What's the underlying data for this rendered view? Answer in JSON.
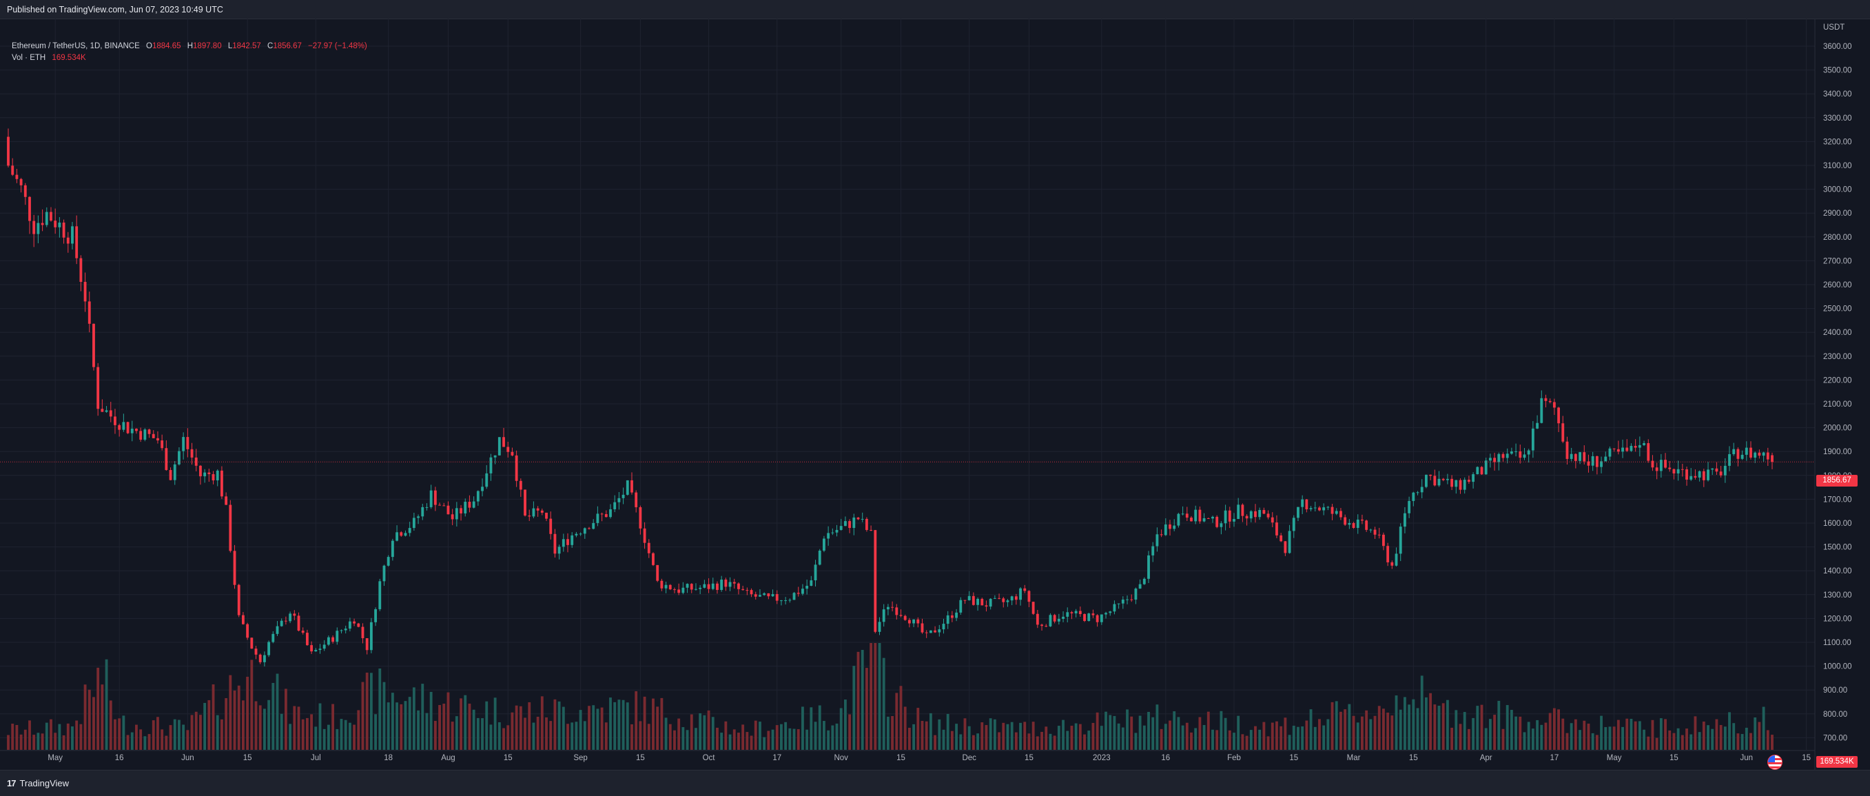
{
  "header": {
    "published": "Published on TradingView.com, Jun 07, 2023 10:49 UTC"
  },
  "legend": {
    "title": "Ethereum / TetherUS, 1D, BINANCE",
    "o_label": "O",
    "o_value": "1884.65",
    "h_label": "H",
    "h_value": "1897.80",
    "l_label": "L",
    "l_value": "1842.57",
    "c_label": "C",
    "c_value": "1856.67",
    "change": "−27.97 (−1.48%)",
    "vol_label": "Vol · ETH",
    "vol_value": "169.534K"
  },
  "footer": {
    "brand": "TradingView"
  },
  "colors": {
    "background": "#131722",
    "grid": "#1f2330",
    "up": "#26a69a",
    "down": "#f23645",
    "up_volume": "#1f5f5b",
    "down_volume": "#7a2a30",
    "axis_text": "#b2b5be",
    "price_line": "#f23645"
  },
  "chart_data": {
    "type": "candlestick",
    "symbol": "Ethereum / TetherUS",
    "interval": "1D",
    "exchange": "BINANCE",
    "y_unit": "USDT",
    "ylim": [
      700,
      3700
    ],
    "yticks": [
      700,
      800,
      900,
      1000,
      1100,
      1200,
      1300,
      1400,
      1500,
      1600,
      1700,
      1800,
      1900,
      2000,
      2100,
      2200,
      2300,
      2400,
      2500,
      2600,
      2700,
      2800,
      2900,
      3000,
      3100,
      3200,
      3300,
      3400,
      3500,
      3600
    ],
    "x_labels": [
      "May",
      "16",
      "Jun",
      "15",
      "Jul",
      "18",
      "Aug",
      "15",
      "Sep",
      "15",
      "Oct",
      "17",
      "Nov",
      "15",
      "Dec",
      "15",
      "2023",
      "16",
      "Feb",
      "15",
      "Mar",
      "15",
      "Apr",
      "17",
      "May",
      "15",
      "Jun",
      "15"
    ],
    "last_price": 1856.67,
    "last_volume": "169.534K",
    "price_path": [
      [
        "2022-04-20",
        3100
      ],
      [
        "2022-04-23",
        3000
      ],
      [
        "2022-04-26",
        2850
      ],
      [
        "2022-04-29",
        2900
      ],
      [
        "2022-05-02",
        2850
      ],
      [
        "2022-05-05",
        2800
      ],
      [
        "2022-05-08",
        2550
      ],
      [
        "2022-05-11",
        2100
      ],
      [
        "2022-05-14",
        2050
      ],
      [
        "2022-05-18",
        2000
      ],
      [
        "2022-05-21",
        1980
      ],
      [
        "2022-05-25",
        1950
      ],
      [
        "2022-05-28",
        1800
      ],
      [
        "2022-05-31",
        1950
      ],
      [
        "2022-06-04",
        1800
      ],
      [
        "2022-06-08",
        1810
      ],
      [
        "2022-06-10",
        1650
      ],
      [
        "2022-06-13",
        1200
      ],
      [
        "2022-06-16",
        1080
      ],
      [
        "2022-06-18",
        1020
      ],
      [
        "2022-06-20",
        1100
      ],
      [
        "2022-06-25",
        1230
      ],
      [
        "2022-06-30",
        1050
      ],
      [
        "2022-07-05",
        1120
      ],
      [
        "2022-07-10",
        1200
      ],
      [
        "2022-07-13",
        1080
      ],
      [
        "2022-07-16",
        1350
      ],
      [
        "2022-07-19",
        1550
      ],
      [
        "2022-07-24",
        1600
      ],
      [
        "2022-07-28",
        1720
      ],
      [
        "2022-08-02",
        1620
      ],
      [
        "2022-08-07",
        1700
      ],
      [
        "2022-08-13",
        1950
      ],
      [
        "2022-08-16",
        1900
      ],
      [
        "2022-08-19",
        1620
      ],
      [
        "2022-08-23",
        1650
      ],
      [
        "2022-08-26",
        1480
      ],
      [
        "2022-08-30",
        1550
      ],
      [
        "2022-09-03",
        1600
      ],
      [
        "2022-09-08",
        1650
      ],
      [
        "2022-09-12",
        1750
      ],
      [
        "2022-09-15",
        1600
      ],
      [
        "2022-09-19",
        1350
      ],
      [
        "2022-09-24",
        1320
      ],
      [
        "2022-09-30",
        1330
      ],
      [
        "2022-10-05",
        1350
      ],
      [
        "2022-10-10",
        1300
      ],
      [
        "2022-10-15",
        1280
      ],
      [
        "2022-10-20",
        1290
      ],
      [
        "2022-10-25",
        1350
      ],
      [
        "2022-10-28",
        1550
      ],
      [
        "2022-11-01",
        1580
      ],
      [
        "2022-11-05",
        1620
      ],
      [
        "2022-11-08",
        1550
      ],
      [
        "2022-11-09",
        1150
      ],
      [
        "2022-11-12",
        1260
      ],
      [
        "2022-11-17",
        1200
      ],
      [
        "2022-11-21",
        1120
      ],
      [
        "2022-11-26",
        1200
      ],
      [
        "2022-11-30",
        1280
      ],
      [
        "2022-12-05",
        1260
      ],
      [
        "2022-12-10",
        1270
      ],
      [
        "2022-12-14",
        1320
      ],
      [
        "2022-12-17",
        1170
      ],
      [
        "2022-12-23",
        1220
      ],
      [
        "2022-12-31",
        1200
      ],
      [
        "2023-01-05",
        1250
      ],
      [
        "2023-01-10",
        1330
      ],
      [
        "2023-01-14",
        1550
      ],
      [
        "2023-01-20",
        1650
      ],
      [
        "2023-01-27",
        1600
      ],
      [
        "2023-02-02",
        1650
      ],
      [
        "2023-02-08",
        1640
      ],
      [
        "2023-02-13",
        1500
      ],
      [
        "2023-02-17",
        1690
      ],
      [
        "2023-02-23",
        1650
      ],
      [
        "2023-03-01",
        1600
      ],
      [
        "2023-03-06",
        1560
      ],
      [
        "2023-03-10",
        1420
      ],
      [
        "2023-03-14",
        1700
      ],
      [
        "2023-03-18",
        1800
      ],
      [
        "2023-03-25",
        1750
      ],
      [
        "2023-03-31",
        1820
      ],
      [
        "2023-04-05",
        1880
      ],
      [
        "2023-04-10",
        1870
      ],
      [
        "2023-04-14",
        2100
      ],
      [
        "2023-04-17",
        2080
      ],
      [
        "2023-04-20",
        1900
      ],
      [
        "2023-04-25",
        1850
      ],
      [
        "2023-04-30",
        1880
      ],
      [
        "2023-05-05",
        1900
      ],
      [
        "2023-05-07",
        1950
      ],
      [
        "2023-05-10",
        1850
      ],
      [
        "2023-05-15",
        1820
      ],
      [
        "2023-05-20",
        1810
      ],
      [
        "2023-05-25",
        1800
      ],
      [
        "2023-05-30",
        1900
      ],
      [
        "2023-06-04",
        1890
      ],
      [
        "2023-06-06",
        1880
      ],
      [
        "2023-06-07",
        1856.67
      ]
    ],
    "volume_path": [
      [
        "2022-04-20",
        0.18
      ],
      [
        "2022-05-05",
        0.22
      ],
      [
        "2022-05-09",
        0.5
      ],
      [
        "2022-05-12",
        0.7
      ],
      [
        "2022-05-16",
        0.25
      ],
      [
        "2022-06-01",
        0.2
      ],
      [
        "2022-06-13",
        0.65
      ],
      [
        "2022-06-18",
        0.72
      ],
      [
        "2022-06-25",
        0.35
      ],
      [
        "2022-07-05",
        0.3
      ],
      [
        "2022-07-15",
        0.55
      ],
      [
        "2022-07-28",
        0.45
      ],
      [
        "2022-08-15",
        0.35
      ],
      [
        "2022-09-15",
        0.4
      ],
      [
        "2022-10-10",
        0.18
      ],
      [
        "2022-11-01",
        0.35
      ],
      [
        "2022-11-09",
        0.98
      ],
      [
        "2022-11-12",
        0.55
      ],
      [
        "2022-11-20",
        0.25
      ],
      [
        "2022-12-15",
        0.2
      ],
      [
        "2023-01-15",
        0.3
      ],
      [
        "2023-02-10",
        0.22
      ],
      [
        "2023-03-10",
        0.4
      ],
      [
        "2023-03-13",
        0.62
      ],
      [
        "2023-03-20",
        0.38
      ],
      [
        "2023-04-15",
        0.28
      ],
      [
        "2023-05-10",
        0.2
      ],
      [
        "2023-06-05",
        0.28
      ],
      [
        "2023-06-07",
        0.12
      ]
    ]
  }
}
